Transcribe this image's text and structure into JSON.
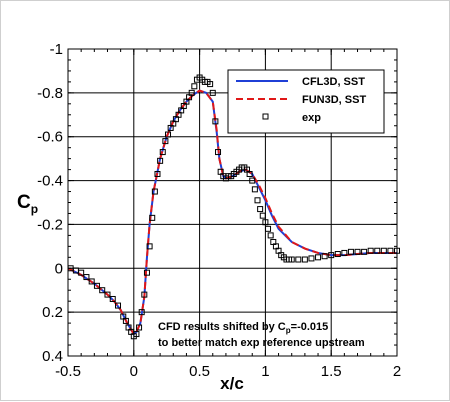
{
  "chart_data": {
    "type": "line",
    "xlabel": "x/c",
    "ylabel": {
      "base": "C",
      "sub": "p"
    },
    "xlim": [
      -0.5,
      2.0
    ],
    "ylim": [
      0.4,
      -1.0
    ],
    "y_axis_inverted": true,
    "grid": true,
    "legend_position": "top-right",
    "x_ticks": [
      "-0.5",
      "0",
      "0.5",
      "1",
      "1.5",
      "2"
    ],
    "y_ticks": [
      "-1",
      "-0.8",
      "-0.6",
      "-0.4",
      "-0.2",
      "0",
      "0.2",
      "0.4"
    ],
    "annotation": {
      "line1_prefix": "CFD results shifted by C",
      "line1_sub": "p",
      "line1_suffix": "=-0.015",
      "line2": "to better match exp reference upstream"
    },
    "series": [
      {
        "name": "CFL3D, SST",
        "style": "solid",
        "color": "#1f3fd6",
        "x": [
          -0.5,
          -0.4,
          -0.3,
          -0.2,
          -0.15,
          -0.1,
          -0.05,
          0.0,
          0.02,
          0.05,
          0.08,
          0.1,
          0.12,
          0.15,
          0.18,
          0.2,
          0.25,
          0.3,
          0.35,
          0.4,
          0.45,
          0.5,
          0.55,
          0.6,
          0.63,
          0.65,
          0.68,
          0.7,
          0.75,
          0.8,
          0.85,
          0.9,
          0.95,
          1.0,
          1.05,
          1.1,
          1.2,
          1.3,
          1.4,
          1.5,
          1.6,
          1.7,
          1.8,
          1.9,
          2.0
        ],
        "y": [
          0.0,
          0.03,
          0.07,
          0.12,
          0.15,
          0.19,
          0.25,
          0.3,
          0.29,
          0.25,
          0.13,
          -0.05,
          -0.2,
          -0.35,
          -0.44,
          -0.5,
          -0.6,
          -0.67,
          -0.72,
          -0.76,
          -0.79,
          -0.81,
          -0.8,
          -0.76,
          -0.62,
          -0.5,
          -0.42,
          -0.41,
          -0.42,
          -0.44,
          -0.45,
          -0.43,
          -0.37,
          -0.31,
          -0.24,
          -0.18,
          -0.12,
          -0.09,
          -0.07,
          -0.06,
          -0.06,
          -0.065,
          -0.07,
          -0.07,
          -0.07
        ]
      },
      {
        "name": "FUN3D, SST",
        "style": "dashed",
        "color": "#e01818",
        "x": [
          -0.5,
          -0.4,
          -0.3,
          -0.2,
          -0.15,
          -0.1,
          -0.05,
          0.0,
          0.02,
          0.05,
          0.08,
          0.1,
          0.12,
          0.15,
          0.18,
          0.2,
          0.25,
          0.3,
          0.35,
          0.4,
          0.45,
          0.5,
          0.55,
          0.6,
          0.63,
          0.65,
          0.68,
          0.7,
          0.75,
          0.8,
          0.85,
          0.9,
          0.95,
          1.0,
          1.05,
          1.1,
          1.2,
          1.3,
          1.4,
          1.5,
          1.6,
          1.7,
          1.8,
          1.9,
          2.0
        ],
        "y": [
          0.0,
          0.03,
          0.07,
          0.12,
          0.15,
          0.19,
          0.25,
          0.3,
          0.29,
          0.25,
          0.13,
          -0.05,
          -0.2,
          -0.35,
          -0.44,
          -0.5,
          -0.6,
          -0.67,
          -0.72,
          -0.76,
          -0.79,
          -0.81,
          -0.8,
          -0.76,
          -0.63,
          -0.5,
          -0.42,
          -0.41,
          -0.42,
          -0.44,
          -0.45,
          -0.43,
          -0.38,
          -0.32,
          -0.25,
          -0.19,
          -0.12,
          -0.09,
          -0.07,
          -0.06,
          -0.06,
          -0.065,
          -0.07,
          -0.07,
          -0.07
        ]
      },
      {
        "name": "exp",
        "style": "markers",
        "color": "#000000",
        "x": [
          -0.48,
          -0.44,
          -0.4,
          -0.36,
          -0.32,
          -0.28,
          -0.24,
          -0.2,
          -0.16,
          -0.12,
          -0.08,
          -0.06,
          -0.04,
          -0.02,
          0.0,
          0.02,
          0.04,
          0.06,
          0.08,
          0.1,
          0.12,
          0.14,
          0.16,
          0.18,
          0.2,
          0.22,
          0.24,
          0.26,
          0.28,
          0.3,
          0.32,
          0.34,
          0.36,
          0.38,
          0.4,
          0.42,
          0.44,
          0.46,
          0.48,
          0.5,
          0.52,
          0.54,
          0.56,
          0.58,
          0.6,
          0.62,
          0.64,
          0.66,
          0.68,
          0.7,
          0.72,
          0.74,
          0.76,
          0.78,
          0.8,
          0.82,
          0.84,
          0.86,
          0.88,
          0.9,
          0.92,
          0.94,
          0.96,
          0.98,
          1.0,
          1.02,
          1.04,
          1.06,
          1.08,
          1.1,
          1.12,
          1.14,
          1.16,
          1.18,
          1.2,
          1.25,
          1.3,
          1.35,
          1.4,
          1.45,
          1.5,
          1.55,
          1.6,
          1.65,
          1.7,
          1.75,
          1.8,
          1.85,
          1.9,
          1.95,
          2.0
        ],
        "y": [
          0.0,
          0.01,
          0.02,
          0.04,
          0.06,
          0.08,
          0.1,
          0.12,
          0.14,
          0.17,
          0.22,
          0.24,
          0.27,
          0.29,
          0.31,
          0.3,
          0.27,
          0.2,
          0.12,
          0.02,
          -0.1,
          -0.23,
          -0.35,
          -0.43,
          -0.49,
          -0.53,
          -0.58,
          -0.61,
          -0.64,
          -0.66,
          -0.68,
          -0.7,
          -0.72,
          -0.74,
          -0.76,
          -0.78,
          -0.8,
          -0.83,
          -0.86,
          -0.87,
          -0.86,
          -0.85,
          -0.85,
          -0.84,
          -0.8,
          -0.67,
          -0.53,
          -0.44,
          -0.42,
          -0.41,
          -0.42,
          -0.42,
          -0.43,
          -0.44,
          -0.45,
          -0.46,
          -0.46,
          -0.45,
          -0.43,
          -0.4,
          -0.36,
          -0.31,
          -0.27,
          -0.24,
          -0.21,
          -0.18,
          -0.15,
          -0.12,
          -0.1,
          -0.08,
          -0.06,
          -0.05,
          -0.04,
          -0.04,
          -0.04,
          -0.04,
          -0.04,
          -0.045,
          -0.05,
          -0.055,
          -0.06,
          -0.065,
          -0.07,
          -0.075,
          -0.075,
          -0.075,
          -0.08,
          -0.08,
          -0.08,
          -0.08,
          -0.08
        ]
      }
    ]
  }
}
